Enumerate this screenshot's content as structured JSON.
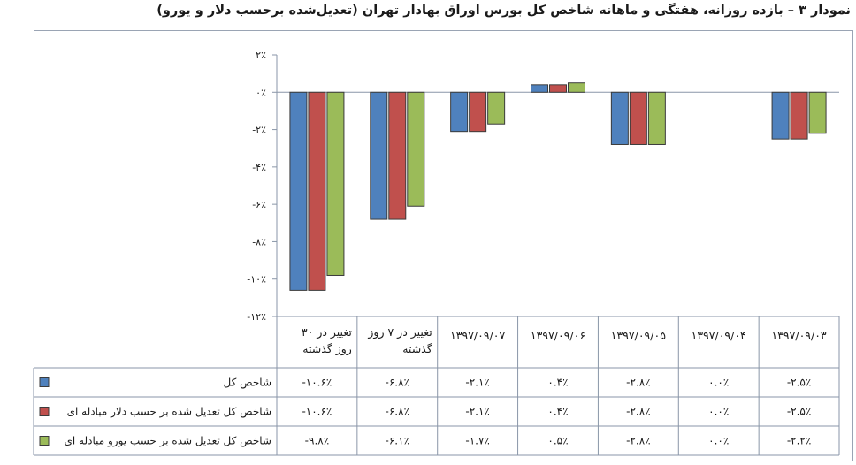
{
  "chart_data": {
    "type": "bar",
    "title": "نمودار ۳ – بازده روزانه، هفتگی و ماهانه شاخص کل بورس اوراق بهادار تهران (تعدیل‌شده برحسب دلار و یورو)",
    "categories": [
      "۱۳۹۷/۰۹/۰۳",
      "۱۳۹۷/۰۹/۰۴",
      "۱۳۹۷/۰۹/۰۵",
      "۱۳۹۷/۰۹/۰۶",
      "۱۳۹۷/۰۹/۰۷",
      "تغییر در ۷ روز گذشته",
      "تغییر در ۳۰ روز گذشته"
    ],
    "category_display": {
      "۱۳۹۷/۰۹/۰۳": [
        "۱۳۹۷/۰۹/۰۳"
      ],
      "۱۳۹۷/۰۹/۰۴": [
        "۱۳۹۷/۰۹/۰۴"
      ],
      "۱۳۹۷/۰۹/۰۵": [
        "۱۳۹۷/۰۹/۰۵"
      ],
      "۱۳۹۷/۰۹/۰۶": [
        "۱۳۹۷/۰۹/۰۶"
      ],
      "۱۳۹۷/۰۹/۰۷": [
        "۱۳۹۷/۰۹/۰۷"
      ],
      "تغییر در ۷ روز گذشته": [
        "تغییر در ۷ روز",
        "گذشته"
      ],
      "تغییر در ۳۰ روز گذشته": [
        "تغییر در ۳۰",
        "روز گذشته"
      ]
    },
    "series": [
      {
        "name": "شاخص کل",
        "color": "#4f81bd",
        "values": [
          -2.5,
          0.0,
          -2.8,
          0.4,
          -2.1,
          -6.8,
          -10.6
        ],
        "labels": [
          "-۲.۵٪",
          "۰.۰٪",
          "-۲.۸٪",
          "۰.۴٪",
          "-۲.۱٪",
          "-۶.۸٪",
          "-۱۰.۶٪"
        ]
      },
      {
        "name": "شاخص کل تعدیل شده بر حسب دلار مبادله ای",
        "color": "#c0504d",
        "values": [
          -2.5,
          0.0,
          -2.8,
          0.4,
          -2.1,
          -6.8,
          -10.6
        ],
        "labels": [
          "-۲.۵٪",
          "۰.۰٪",
          "-۲.۸٪",
          "۰.۴٪",
          "-۲.۱٪",
          "-۶.۸٪",
          "-۱۰.۶٪"
        ]
      },
      {
        "name": "شاخص کل تعدیل شده بر حسب یورو مبادله ای",
        "color": "#9bbb59",
        "values": [
          -2.2,
          0.0,
          -2.8,
          0.5,
          -1.7,
          -6.1,
          -9.8
        ],
        "labels": [
          "-۲.۲٪",
          "۰.۰٪",
          "-۲.۸٪",
          "۰.۵٪",
          "-۱.۷٪",
          "-۶.۱٪",
          "-۹.۸٪"
        ]
      }
    ],
    "ylim": [
      -12,
      2
    ],
    "yticks": [
      2,
      0,
      -2,
      -4,
      -6,
      -8,
      -10,
      -12
    ],
    "ytick_labels": [
      "۲٪",
      "۰٪",
      "-۲٪",
      "-۴٪",
      "-۶٪",
      "-۸٪",
      "-۱۰٪",
      "-۱۲٪"
    ],
    "grid": false,
    "legend": "data-table-left",
    "category_order": "right-to-left"
  }
}
